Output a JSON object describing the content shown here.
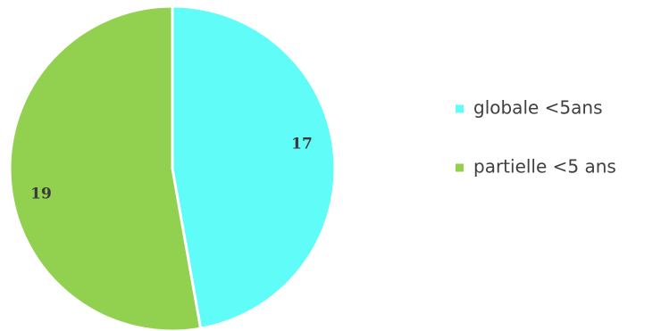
{
  "chart_data": {
    "type": "pie",
    "title": "",
    "categories": [
      "globale <5ans",
      "partielle <5 ans"
    ],
    "values": [
      17,
      19
    ],
    "data_labels": [
      "17",
      "19"
    ],
    "colors": [
      "#5ffcf8",
      "#92d050"
    ],
    "legend": {
      "placement": "right",
      "entries": [
        "globale <5ans",
        "partielle <5 ans"
      ]
    }
  }
}
